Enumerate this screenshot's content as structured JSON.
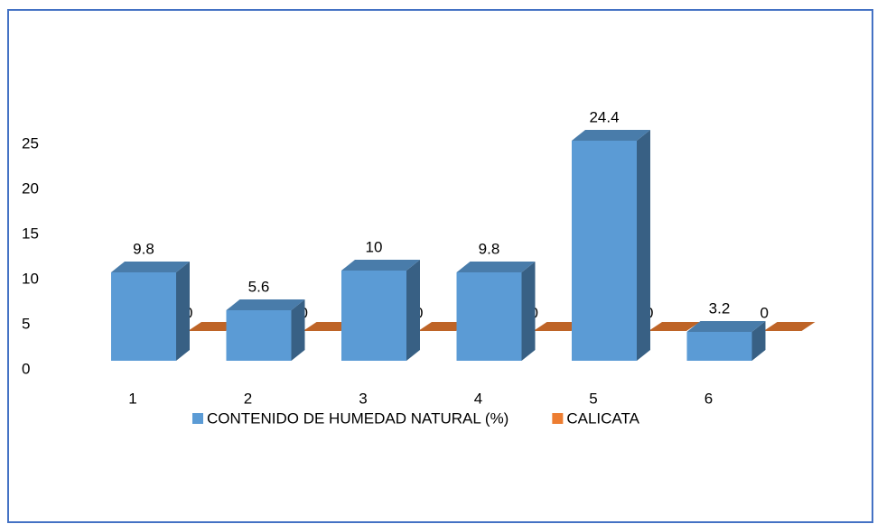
{
  "chart_data": {
    "type": "bar3d",
    "categories": [
      "1",
      "2",
      "3",
      "4",
      "5",
      "6"
    ],
    "series": [
      {
        "name": "CONTENIDO DE HUMEDAD NATURAL (%)",
        "color": "#5b9bd5",
        "values": [
          9.8,
          5.6,
          10,
          9.8,
          24.4,
          3.2
        ]
      },
      {
        "name": "CALICATA",
        "color": "#ed7d31",
        "values": [
          0,
          0,
          0,
          0,
          0,
          0
        ]
      }
    ],
    "ylim": [
      0,
      25
    ],
    "yticks": [
      0,
      5,
      10,
      15,
      20,
      25
    ],
    "grid": false,
    "legend": "bottom"
  }
}
